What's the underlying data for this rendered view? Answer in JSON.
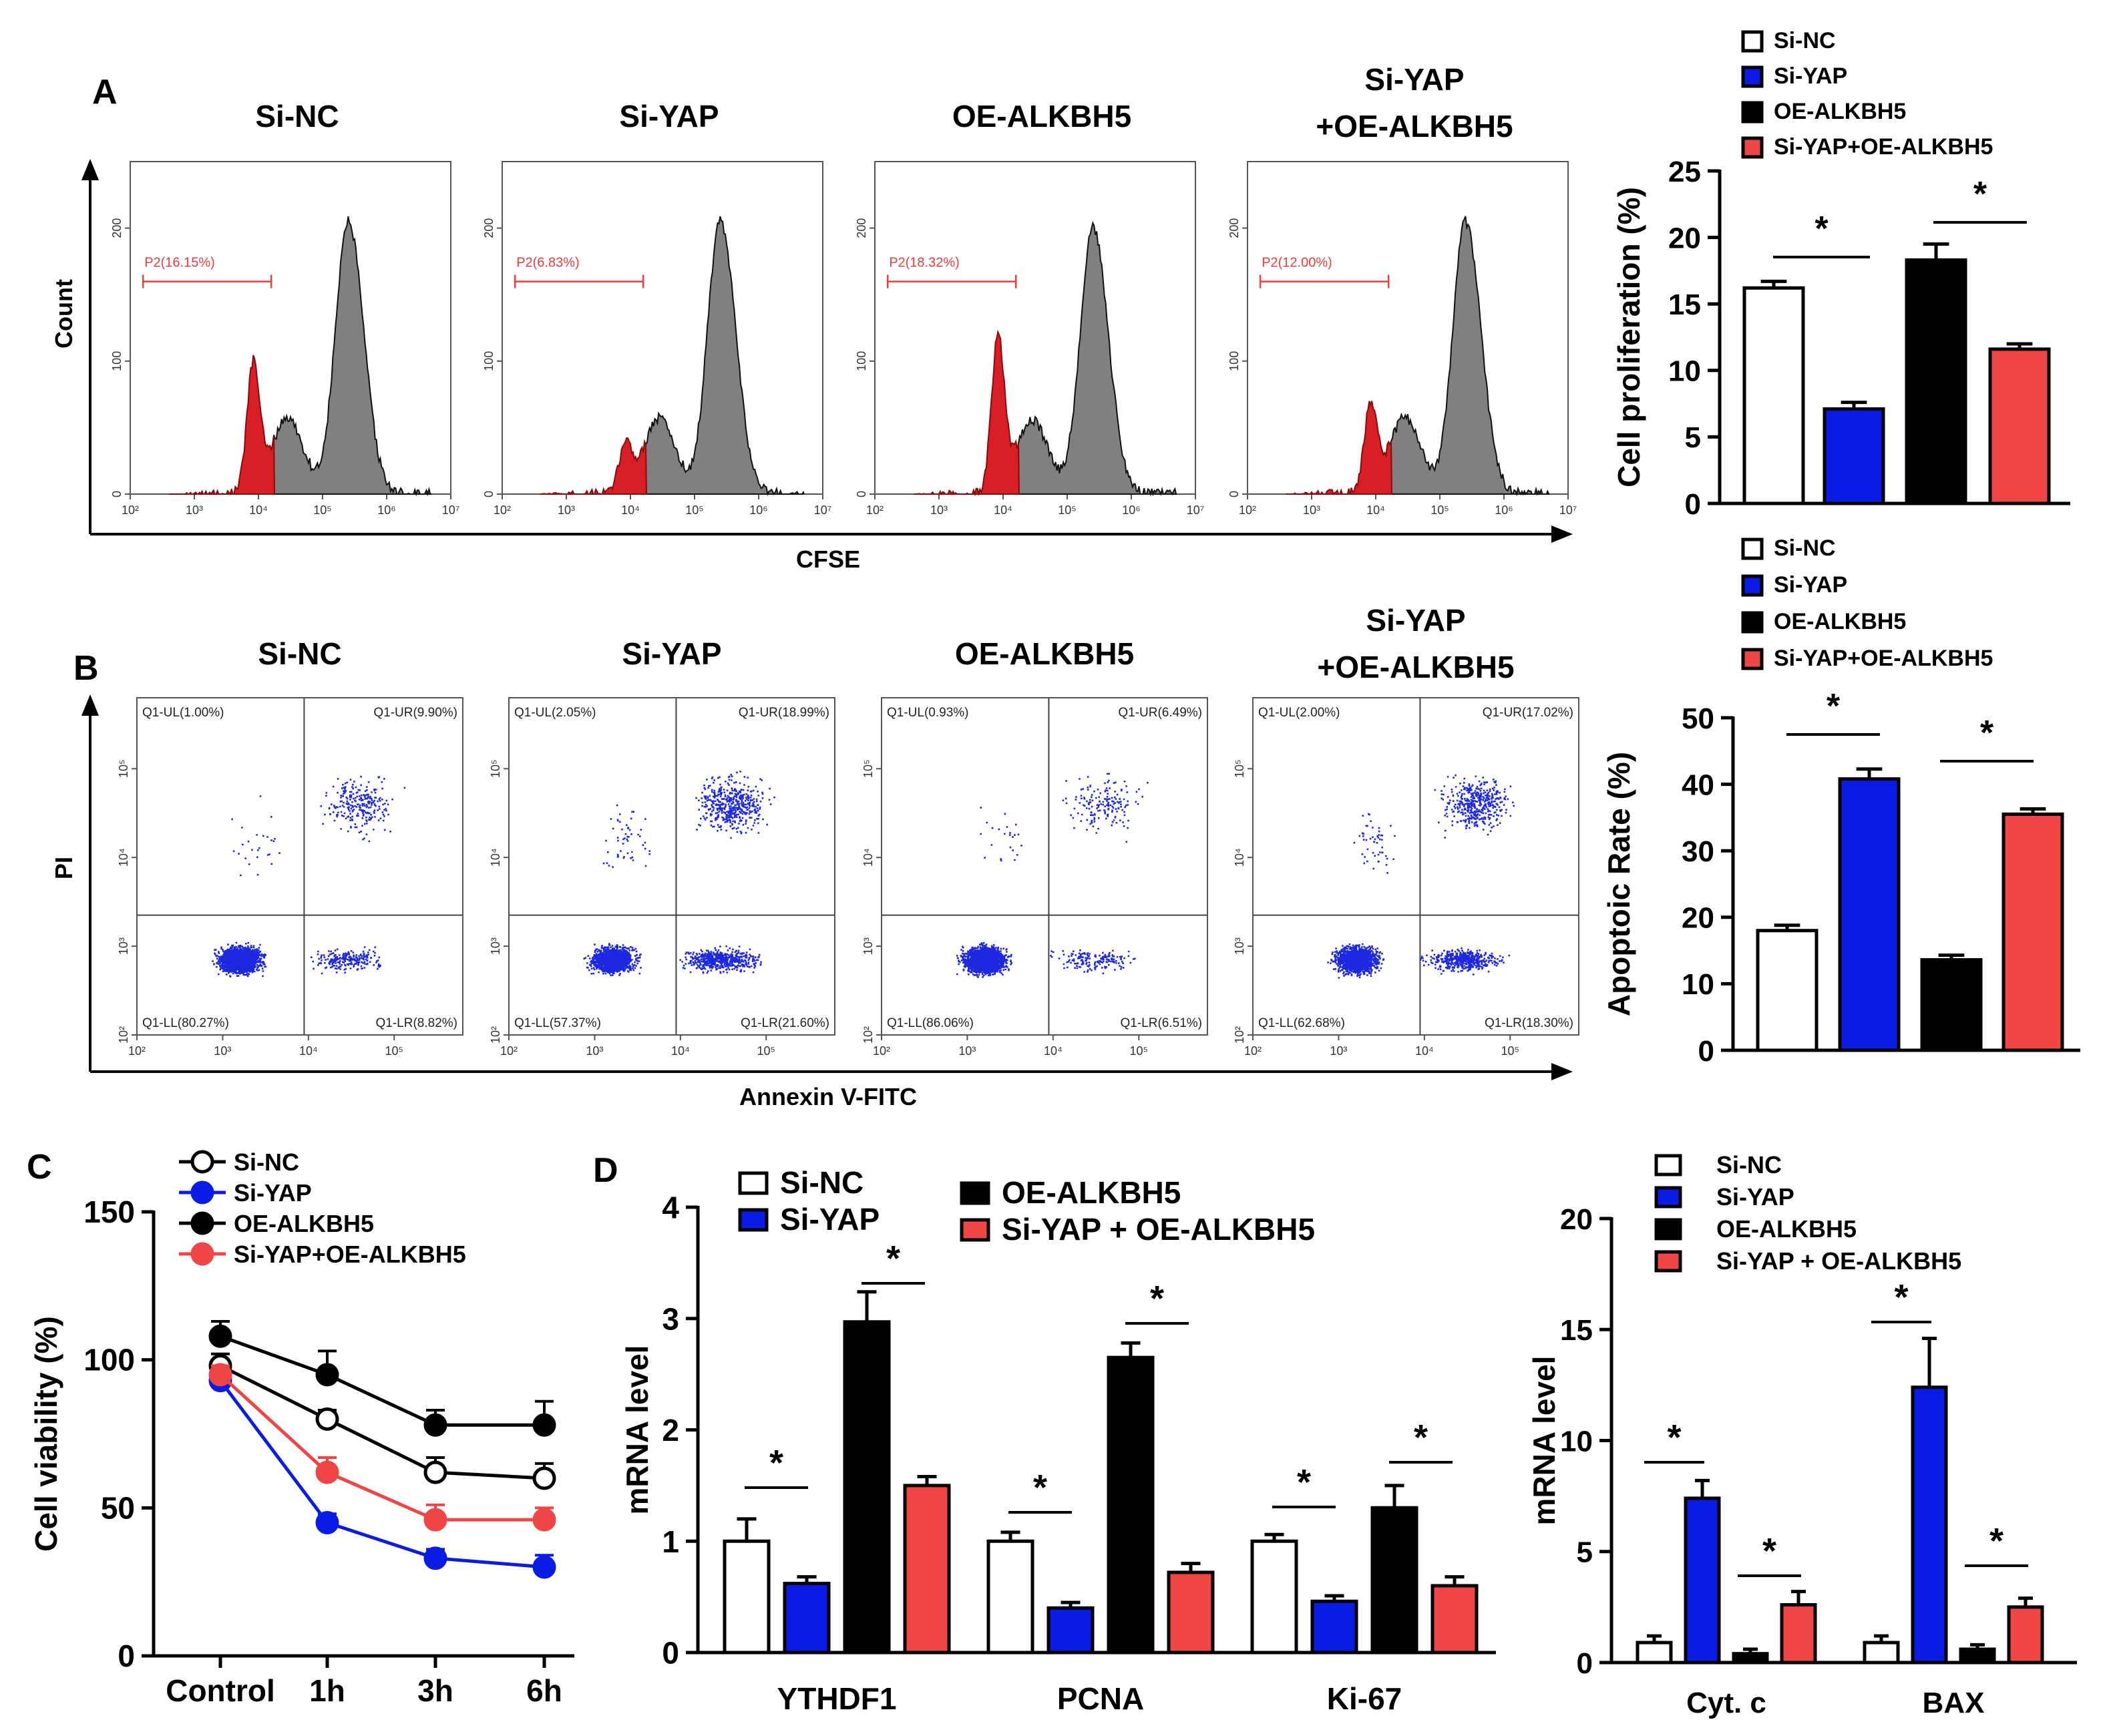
{
  "colors": {
    "si_nc": "#ffffff",
    "si_yap": "#0b1be6",
    "oe_alkbh5": "#000000",
    "combo": "#f04545",
    "flow_gray": "#808080",
    "flow_red": "#d81f26",
    "dot_blue": "#1c28e0",
    "gate_red": "#ef3b3b"
  },
  "chart_data": [
    {
      "id": "A-flow",
      "type": "area",
      "panel_label": "A",
      "ylabel": "Count",
      "xlabel": "CFSE",
      "x_ticks": [
        "10²",
        "10³",
        "10⁴",
        "10⁵",
        "10⁶",
        "10⁷"
      ],
      "y_ticks": [
        "0",
        "100",
        "200"
      ],
      "ylim": [
        0,
        250
      ],
      "gate_name": "P2",
      "plots": [
        {
          "title": "Si-NC",
          "title2": "",
          "gate_label": "P2(16.15%)",
          "gate_pct": 16.15,
          "red_peak": 95,
          "gray_peak": 205
        },
        {
          "title": "Si-YAP",
          "title2": "",
          "gate_label": "P2(6.83%)",
          "gate_pct": 6.83,
          "red_peak": 35,
          "gray_peak": 205
        },
        {
          "title": "OE-ALKBH5",
          "title2": "",
          "gate_label": "P2(18.32%)",
          "gate_pct": 18.32,
          "red_peak": 115,
          "gray_peak": 200
        },
        {
          "title": "Si-YAP",
          "title2": "+OE-ALKBH5",
          "gate_label": "P2(12.00%)",
          "gate_pct": 12.0,
          "red_peak": 65,
          "gray_peak": 205
        }
      ]
    },
    {
      "id": "A-bar",
      "type": "bar",
      "ylabel": "Cell proliferation (%)",
      "ylim": [
        0,
        25
      ],
      "yticks": [
        "0",
        "5",
        "10",
        "15",
        "20",
        "25"
      ],
      "legend": [
        "Si-NC",
        "Si-YAP",
        "OE-ALKBH5",
        "Si-YAP+OE-ALKBH5"
      ],
      "values": [
        16.2,
        7.1,
        18.3,
        11.6
      ],
      "errors": [
        0.5,
        0.5,
        1.2,
        0.4
      ],
      "significance": [
        "*",
        "*"
      ]
    },
    {
      "id": "B-flow",
      "type": "scatter",
      "panel_label": "B",
      "ylabel": "PI",
      "xlabel": "Annexin  V-FITC",
      "x_ticks": [
        "10²",
        "10³",
        "10⁴",
        "10⁵"
      ],
      "y_ticks": [
        "10²",
        "10³",
        "10⁴",
        "10⁵"
      ],
      "plots": [
        {
          "title": "Si-NC",
          "title2": "",
          "ul": "Q1-UL(1.00%)",
          "ur": "Q1-UR(9.90%)",
          "ll": "Q1-LL(80.27%)",
          "lr": "Q1-LR(8.82%)",
          "ur_pct": 9.9,
          "lr_pct": 8.82,
          "ll_pct": 80.27,
          "ul_pct": 1.0
        },
        {
          "title": "Si-YAP",
          "title2": "",
          "ul": "Q1-UL(2.05%)",
          "ur": "Q1-UR(18.99%)",
          "ll": "Q1-LL(57.37%)",
          "lr": "Q1-LR(21.60%)",
          "ur_pct": 18.99,
          "lr_pct": 21.6,
          "ll_pct": 57.37,
          "ul_pct": 2.05
        },
        {
          "title": "OE-ALKBH5",
          "title2": "",
          "ul": "Q1-UL(0.93%)",
          "ur": "Q1-UR(6.49%)",
          "ll": "Q1-LL(86.06%)",
          "lr": "Q1-LR(6.51%)",
          "ur_pct": 6.49,
          "lr_pct": 6.51,
          "ll_pct": 86.06,
          "ul_pct": 0.93
        },
        {
          "title": "Si-YAP",
          "title2": "+OE-ALKBH5",
          "ul": "Q1-UL(2.00%)",
          "ur": "Q1-UR(17.02%)",
          "ll": "Q1-LL(62.68%)",
          "lr": "Q1-LR(18.30%)",
          "ur_pct": 17.02,
          "lr_pct": 18.3,
          "ll_pct": 62.68,
          "ul_pct": 2.0
        }
      ]
    },
    {
      "id": "B-bar",
      "type": "bar",
      "ylabel": "Apoptoic Rate (%)",
      "ylim": [
        0,
        50
      ],
      "yticks": [
        "0",
        "10",
        "20",
        "30",
        "40",
        "50"
      ],
      "legend": [
        "Si-NC",
        "Si-YAP",
        "OE-ALKBH5",
        "Si-YAP+OE-ALKBH5"
      ],
      "values": [
        18.0,
        40.8,
        13.6,
        35.5
      ],
      "errors": [
        0.8,
        1.5,
        0.7,
        0.8
      ],
      "significance": [
        "*",
        "*"
      ]
    },
    {
      "id": "C",
      "type": "line",
      "panel_label": "C",
      "ylabel": "Cell viability (%)",
      "ylim": [
        0,
        150
      ],
      "yticks": [
        "0",
        "50",
        "100",
        "150"
      ],
      "categories": [
        "Control",
        "1h",
        "3h",
        "6h"
      ],
      "series": [
        {
          "name": "Si-NC",
          "values": [
            98,
            80,
            62,
            60
          ],
          "errors": [
            4,
            3,
            5,
            5
          ]
        },
        {
          "name": "Si-YAP",
          "values": [
            93,
            45,
            33,
            30
          ],
          "errors": [
            3,
            3,
            3,
            4
          ]
        },
        {
          "name": "OE-ALKBH5",
          "values": [
            108,
            95,
            78,
            78
          ],
          "errors": [
            5,
            8,
            5,
            8
          ]
        },
        {
          "name": "Si-YAP+OE-ALKBH5",
          "values": [
            95,
            62,
            46,
            46
          ],
          "errors": [
            3,
            5,
            5,
            4
          ]
        }
      ]
    },
    {
      "id": "D-left",
      "type": "bar",
      "panel_label": "D",
      "ylabel": "mRNA level",
      "ylim": [
        0,
        4
      ],
      "yticks": [
        "0",
        "1",
        "2",
        "3",
        "4"
      ],
      "categories": [
        "YTHDF1",
        "PCNA",
        "Ki-67"
      ],
      "legend": [
        "Si-NC",
        "Si-YAP",
        "OE-ALKBH5",
        "Si-YAP + OE-ALKBH5"
      ],
      "series": [
        {
          "name": "Si-NC",
          "values": [
            1.0,
            1.0,
            1.0
          ],
          "errors": [
            0.2,
            0.08,
            0.06
          ]
        },
        {
          "name": "Si-YAP",
          "values": [
            0.62,
            0.4,
            0.46
          ],
          "errors": [
            0.06,
            0.05,
            0.05
          ]
        },
        {
          "name": "OE-ALKBH5",
          "values": [
            2.97,
            2.65,
            1.3
          ],
          "errors": [
            0.27,
            0.13,
            0.2
          ]
        },
        {
          "name": "Si-YAP + OE-ALKBH5",
          "values": [
            1.5,
            0.72,
            0.6
          ],
          "errors": [
            0.08,
            0.08,
            0.08
          ]
        }
      ],
      "significance": [
        "*",
        "*",
        "*",
        "*",
        "*",
        "*"
      ]
    },
    {
      "id": "D-right",
      "type": "bar",
      "ylabel": "mRNA level",
      "ylim": [
        0,
        20
      ],
      "yticks": [
        "0",
        "5",
        "10",
        "15",
        "20"
      ],
      "categories": [
        "Cyt. c",
        "BAX"
      ],
      "legend": [
        "Si-NC",
        "Si-YAP",
        "OE-ALKBH5",
        "Si-YAP + OE-ALKBH5"
      ],
      "series": [
        {
          "name": "Si-NC",
          "values": [
            0.9,
            0.9
          ],
          "errors": [
            0.3,
            0.3
          ]
        },
        {
          "name": "Si-YAP",
          "values": [
            7.4,
            12.4
          ],
          "errors": [
            0.8,
            2.2
          ]
        },
        {
          "name": "OE-ALKBH5",
          "values": [
            0.4,
            0.6
          ],
          "errors": [
            0.2,
            0.2
          ]
        },
        {
          "name": "Si-YAP + OE-ALKBH5",
          "values": [
            2.6,
            2.5
          ],
          "errors": [
            0.6,
            0.4
          ]
        }
      ],
      "significance": [
        "*",
        "*",
        "*",
        "*"
      ]
    }
  ]
}
